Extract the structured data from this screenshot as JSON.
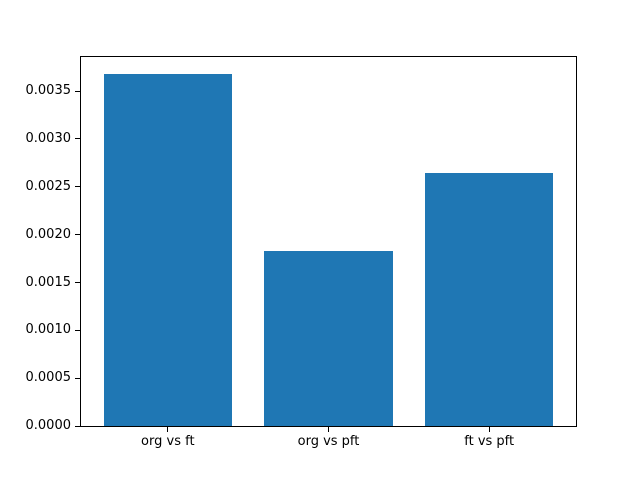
{
  "chart_data": {
    "type": "bar",
    "title": "",
    "xlabel": "",
    "ylabel": "",
    "categories": [
      "org vs ft",
      "org vs pft",
      "ft vs pft"
    ],
    "values": [
      0.00368,
      0.00183,
      0.00264
    ],
    "bar_color": "#1f77b4",
    "bar_width_fraction": 0.8,
    "xlim": [
      -0.54,
      2.54
    ],
    "ylim": [
      0,
      0.003856
    ],
    "yticks": [
      0.0,
      0.0005,
      0.001,
      0.0015,
      0.002,
      0.0025,
      0.003,
      0.0035
    ],
    "ytick_labels": [
      "0.0000",
      "0.0005",
      "0.0010",
      "0.0015",
      "0.0020",
      "0.0025",
      "0.0030",
      "0.0035"
    ],
    "grid": false,
    "legend": null,
    "background_color": "#ffffff",
    "spine_color": "#000000"
  }
}
